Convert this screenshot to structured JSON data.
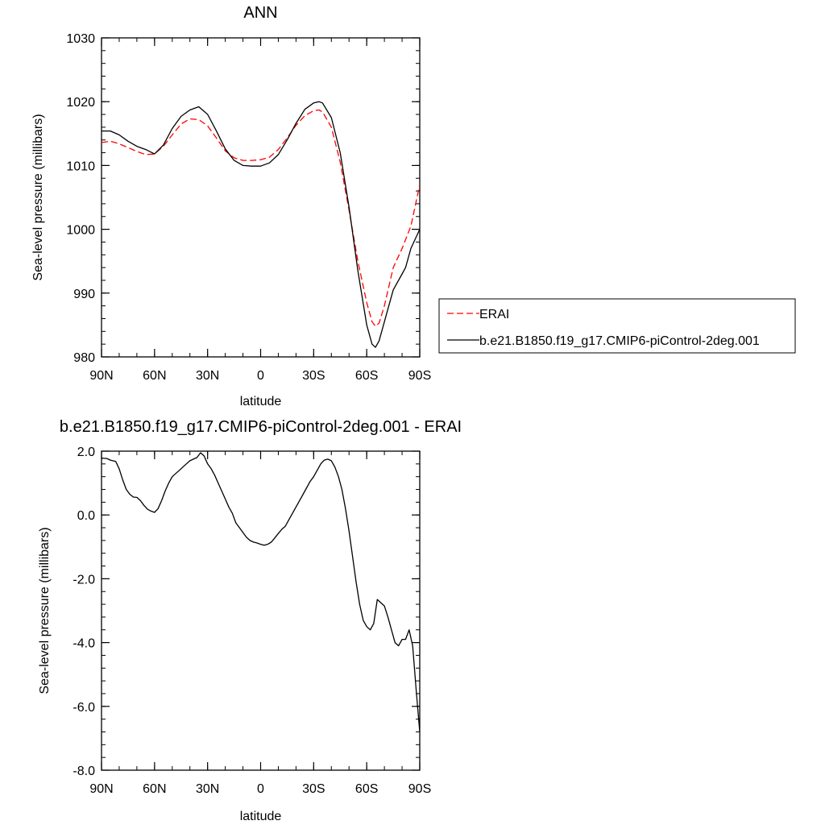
{
  "chart_data": [
    {
      "type": "line",
      "title": "ANN",
      "xlabel": "latitude",
      "ylabel": "Sea-level pressure (millibars)",
      "xlim": [
        90,
        -90
      ],
      "ylim": [
        980,
        1030
      ],
      "x_ticks": [
        {
          "value": 90,
          "label": "90N"
        },
        {
          "value": 60,
          "label": "60N"
        },
        {
          "value": 30,
          "label": "30N"
        },
        {
          "value": 0,
          "label": "0"
        },
        {
          "value": -30,
          "label": "30S"
        },
        {
          "value": -60,
          "label": "60S"
        },
        {
          "value": -90,
          "label": "90S"
        }
      ],
      "y_ticks": [
        {
          "value": 980,
          "label": "980"
        },
        {
          "value": 990,
          "label": "990"
        },
        {
          "value": 1000,
          "label": "1000"
        },
        {
          "value": 1010,
          "label": "1010"
        },
        {
          "value": 1020,
          "label": "1020"
        },
        {
          "value": 1030,
          "label": "1030"
        }
      ],
      "legend_position": "right",
      "series": [
        {
          "name": "ERAI",
          "color": "#ff0000",
          "dash": "dashed",
          "x": [
            90,
            85,
            80,
            75,
            70,
            65,
            60,
            55,
            50,
            45,
            40,
            35,
            30,
            25,
            20,
            15,
            10,
            5,
            0,
            -5,
            -10,
            -15,
            -20,
            -25,
            -30,
            -33,
            -35,
            -40,
            -45,
            -50,
            -55,
            -60,
            -63,
            -65,
            -67,
            -70,
            -75,
            -80,
            -85,
            -90
          ],
          "y": [
            1013.6,
            1013.8,
            1013.4,
            1012.8,
            1012.2,
            1011.7,
            1011.8,
            1013.0,
            1014.8,
            1016.5,
            1017.3,
            1017.2,
            1016.2,
            1014.3,
            1012.3,
            1011.2,
            1010.8,
            1010.8,
            1010.9,
            1011.3,
            1012.5,
            1014.3,
            1016.3,
            1017.8,
            1018.6,
            1018.7,
            1018.4,
            1016.0,
            1010.5,
            1003.0,
            995.0,
            988.5,
            985.5,
            984.8,
            985.3,
            988.0,
            994.0,
            997.0,
            1000.5,
            1007.0
          ]
        },
        {
          "name": "b.e21.B1850.f19_g17.CMIP6-piControl-2deg.001",
          "color": "#000000",
          "dash": "solid",
          "x": [
            90,
            85,
            80,
            75,
            70,
            65,
            60,
            55,
            50,
            45,
            40,
            35,
            30,
            25,
            20,
            15,
            10,
            5,
            0,
            -5,
            -10,
            -15,
            -20,
            -25,
            -30,
            -33,
            -35,
            -40,
            -45,
            -50,
            -55,
            -60,
            -63,
            -65,
            -67,
            -70,
            -75,
            -80,
            -82,
            -85,
            -90
          ],
          "y": [
            1015.4,
            1015.4,
            1014.8,
            1013.8,
            1013.0,
            1012.5,
            1011.8,
            1013.2,
            1015.8,
            1017.7,
            1018.7,
            1019.2,
            1018.0,
            1015.4,
            1012.6,
            1010.8,
            1010.0,
            1009.9,
            1009.9,
            1010.4,
            1011.7,
            1014.0,
            1016.6,
            1018.8,
            1019.8,
            1020.0,
            1019.8,
            1017.5,
            1012.0,
            1003.5,
            993.5,
            985.0,
            982.0,
            981.5,
            982.5,
            985.5,
            990.5,
            993.0,
            994.0,
            997.0,
            1000.0
          ]
        }
      ]
    },
    {
      "type": "line",
      "title": "b.e21.B1850.f19_g17.CMIP6-piControl-2deg.001 - ERAI",
      "xlabel": "latitude",
      "ylabel": "Sea-level pressure (millibars)",
      "xlim": [
        90,
        -90
      ],
      "ylim": [
        -8,
        2
      ],
      "x_ticks": [
        {
          "value": 90,
          "label": "90N"
        },
        {
          "value": 60,
          "label": "60N"
        },
        {
          "value": 30,
          "label": "30N"
        },
        {
          "value": 0,
          "label": "0"
        },
        {
          "value": -30,
          "label": "30S"
        },
        {
          "value": -60,
          "label": "60S"
        },
        {
          "value": -90,
          "label": "90S"
        }
      ],
      "y_ticks": [
        {
          "value": -8,
          "label": "-8.0"
        },
        {
          "value": -6,
          "label": "-6.0"
        },
        {
          "value": -4,
          "label": "-4.0"
        },
        {
          "value": -2,
          "label": "-2.0"
        },
        {
          "value": 0,
          "label": "0.0"
        },
        {
          "value": 2,
          "label": "2.0"
        }
      ],
      "series": [
        {
          "color": "#000000",
          "dash": "solid",
          "x": [
            90,
            87,
            85,
            82,
            80,
            78,
            76,
            74,
            72,
            70,
            68,
            66,
            64,
            62,
            60,
            58,
            56,
            54,
            52,
            50,
            48,
            46,
            44,
            42,
            40,
            38,
            36,
            34,
            32,
            30,
            28,
            26,
            24,
            22,
            20,
            18,
            16,
            14,
            12,
            10,
            8,
            6,
            4,
            2,
            0,
            -2,
            -4,
            -6,
            -8,
            -10,
            -12,
            -14,
            -16,
            -18,
            -20,
            -22,
            -24,
            -26,
            -28,
            -30,
            -32,
            -34,
            -36,
            -38,
            -40,
            -42,
            -44,
            -46,
            -48,
            -50,
            -52,
            -54,
            -56,
            -58,
            -60,
            -62,
            -64,
            -66,
            -68,
            -70,
            -72,
            -74,
            -76,
            -78,
            -80,
            -82,
            -84,
            -86,
            -88,
            -90
          ],
          "y": [
            1.78,
            1.77,
            1.72,
            1.68,
            1.45,
            1.1,
            0.8,
            0.65,
            0.56,
            0.55,
            0.45,
            0.3,
            0.18,
            0.12,
            0.08,
            0.2,
            0.45,
            0.75,
            1.0,
            1.2,
            1.3,
            1.4,
            1.5,
            1.6,
            1.7,
            1.75,
            1.8,
            1.95,
            1.85,
            1.6,
            1.45,
            1.25,
            1.0,
            0.75,
            0.5,
            0.25,
            0.05,
            -0.25,
            -0.4,
            -0.55,
            -0.7,
            -0.8,
            -0.85,
            -0.88,
            -0.92,
            -0.95,
            -0.92,
            -0.85,
            -0.72,
            -0.58,
            -0.45,
            -0.35,
            -0.15,
            0.05,
            0.25,
            0.45,
            0.65,
            0.85,
            1.05,
            1.2,
            1.4,
            1.6,
            1.72,
            1.75,
            1.7,
            1.5,
            1.2,
            0.8,
            0.2,
            -0.5,
            -1.3,
            -2.1,
            -2.8,
            -3.3,
            -3.5,
            -3.6,
            -3.4,
            -2.65,
            -2.75,
            -2.85,
            -3.2,
            -3.6,
            -4.0,
            -4.1,
            -3.9,
            -3.9,
            -3.6,
            -4.1,
            -5.5,
            -6.8
          ]
        }
      ]
    }
  ]
}
